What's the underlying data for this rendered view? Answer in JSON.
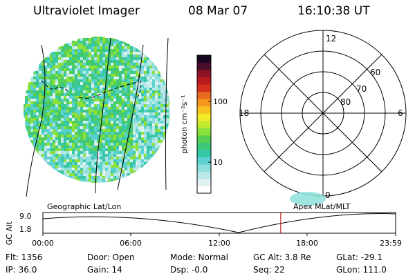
{
  "header": {
    "title": "Ultraviolet Imager",
    "date": "08 Mar 07",
    "time": "16:10:38 UT"
  },
  "colorbar": {
    "unit_label": "photon cm⁻²s⁻¹",
    "ticks": [
      "100",
      "10"
    ],
    "colors": [
      "#ffffff",
      "#e0f2f2",
      "#b9e8e8",
      "#8edede",
      "#5bd2cf",
      "#38c8a8",
      "#3cc878",
      "#55d050",
      "#8be03a",
      "#c4ea30",
      "#f2ec28",
      "#f7c21f",
      "#f39a1c",
      "#e86a1e",
      "#d5301e",
      "#b81a1e",
      "#8c1424",
      "#4c0c2c",
      "#1a0822"
    ]
  },
  "polar": {
    "mlt_labels": [
      "12",
      "18",
      "6",
      "0"
    ],
    "lat_labels": [
      "60",
      "70",
      "80"
    ]
  },
  "timeline": {
    "left_title": "Geographic Lat/Lon",
    "right_title": "Apex MLat/MLT",
    "y_axis_label": "GC Alt",
    "y_ticks": [
      "9.0",
      "1.8"
    ],
    "x_ticks": [
      "00:00",
      "06:00",
      "12:00",
      "18:00",
      "23:59"
    ],
    "marker_time_hours": 16.18
  },
  "status": {
    "flt": "Flt: 1356",
    "ip": "IP: 36.0",
    "door": "Door: Open",
    "gain": "Gain: 14",
    "mode": "Mode: Normal",
    "dsp": "Dsp:    -0.0",
    "gc_alt": "GC Alt: 3.8 Re",
    "seq": "Seq: 22",
    "glat": "GLat: -29.1",
    "glon": "GLon: 111.0"
  }
}
